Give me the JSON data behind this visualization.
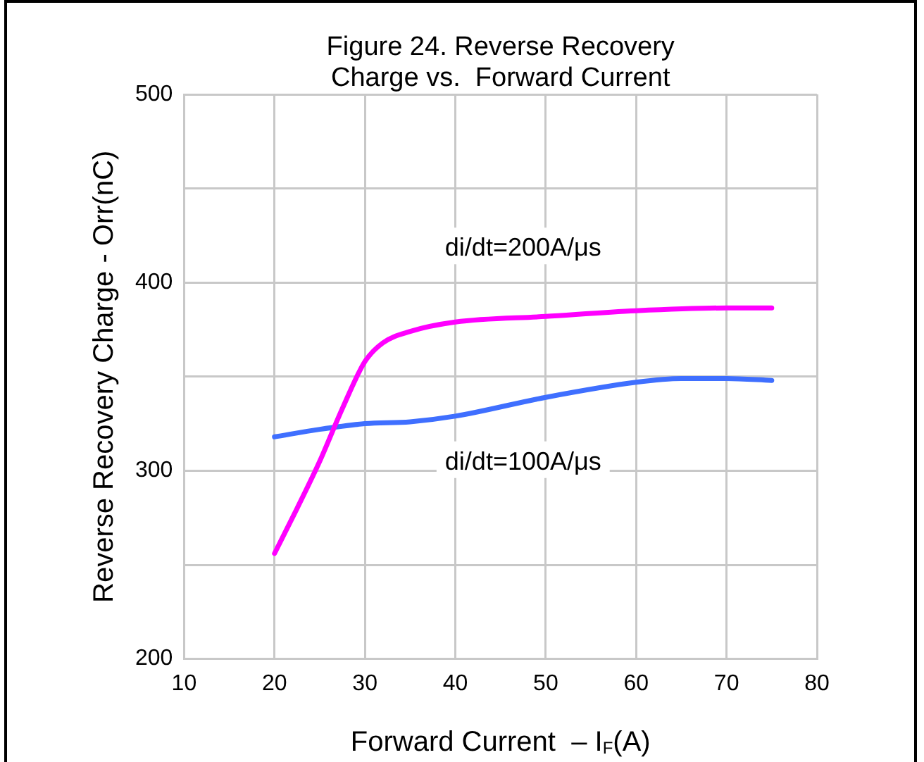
{
  "chart_data": {
    "type": "line",
    "title": "Figure 24. Reverse Recovery\nCharge vs.  Forward Current",
    "xlabel": "Forward Current  – I$_{F}$(A)",
    "ylabel": "Reverse Recovery Charge - Orr(nC)",
    "series": [
      {
        "name": "di/dt=200A/μs",
        "color": "#ff00ff",
        "x": [
          20,
          22.5,
          25,
          27.5,
          30,
          32,
          35,
          40,
          50,
          60,
          70,
          75
        ],
        "values": [
          256,
          280,
          305,
          333,
          358,
          368,
          374,
          379,
          382,
          385,
          386.5,
          386.5
        ]
      },
      {
        "name": "di/dt=100A/μs",
        "color": "#3f6fff",
        "x": [
          20,
          25,
          30,
          35,
          40,
          50,
          60,
          65,
          70,
          75
        ],
        "values": [
          318,
          322,
          325,
          326,
          329,
          339,
          347,
          349,
          349,
          348
        ]
      }
    ],
    "xlim": [
      10,
      80
    ],
    "xticks": [
      10,
      20,
      30,
      40,
      50,
      60,
      70,
      80
    ],
    "ylim": [
      200,
      500
    ],
    "yticks": [
      200,
      {
        "value": 250,
        "label": null
      },
      300,
      {
        "value": 350,
        "label": null
      },
      400,
      {
        "value": 450,
        "label": null
      },
      500
    ],
    "grid": true,
    "marker": "none",
    "line_style": "solid"
  }
}
